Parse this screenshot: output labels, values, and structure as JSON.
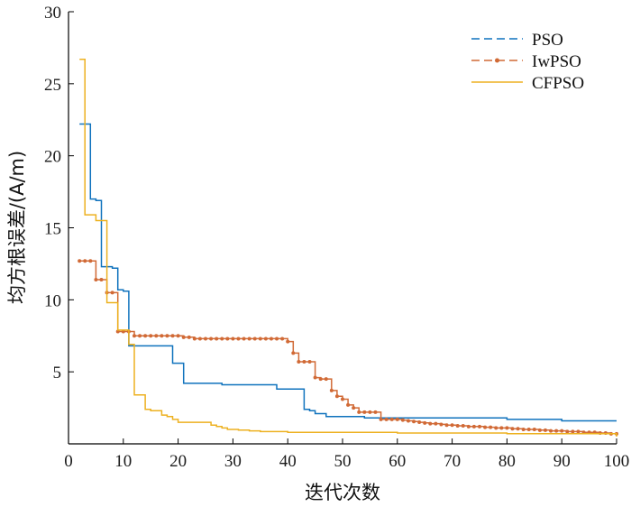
{
  "chart_data": {
    "type": "line",
    "xlabel": "迭代次数",
    "ylabel": "均方根误差/(A/m)",
    "xlim": [
      0,
      100
    ],
    "ylim": [
      0,
      30
    ],
    "xticks": [
      0,
      10,
      20,
      30,
      40,
      50,
      60,
      70,
      80,
      90,
      100
    ],
    "yticks": [
      5,
      10,
      15,
      20,
      25,
      30
    ],
    "grid": false,
    "legend": "top-right",
    "series": [
      {
        "name": "PSO",
        "color": "#0f72bd",
        "legend_style": "dashed",
        "step": true,
        "x": [
          2,
          3,
          4,
          5,
          6,
          7,
          8,
          9,
          10,
          11,
          19,
          20,
          21,
          28,
          38,
          43,
          44,
          45,
          46,
          47,
          54,
          58,
          80,
          90,
          100
        ],
        "y": [
          22.2,
          22.2,
          17.0,
          16.9,
          12.3,
          12.3,
          12.2,
          10.7,
          10.6,
          6.8,
          5.6,
          5.6,
          4.2,
          4.1,
          3.8,
          2.4,
          2.3,
          2.1,
          2.1,
          1.9,
          1.8,
          1.8,
          1.7,
          1.6,
          1.6
        ]
      },
      {
        "name": "IwPSO",
        "color": "#d16a36",
        "legend_style": "dashed-marker",
        "step": true,
        "x": [
          2,
          3,
          4,
          5,
          6,
          7,
          8,
          9,
          10,
          11,
          12,
          13,
          14,
          15,
          16,
          17,
          18,
          19,
          20,
          21,
          22,
          23,
          24,
          25,
          26,
          27,
          28,
          29,
          30,
          31,
          32,
          33,
          34,
          35,
          36,
          37,
          38,
          39,
          40,
          41,
          42,
          43,
          44,
          45,
          46,
          47,
          48,
          49,
          50,
          51,
          52,
          53,
          54,
          55,
          56,
          57,
          58,
          59,
          60,
          61,
          62,
          63,
          64,
          65,
          66,
          67,
          68,
          69,
          70,
          71,
          72,
          73,
          74,
          75,
          76,
          77,
          78,
          79,
          80,
          81,
          82,
          83,
          84,
          85,
          86,
          87,
          88,
          89,
          90,
          91,
          92,
          93,
          94,
          95,
          96,
          97,
          98,
          99,
          100
        ],
        "y": [
          12.7,
          12.7,
          12.7,
          11.4,
          11.4,
          10.5,
          10.5,
          7.8,
          7.8,
          7.8,
          7.5,
          7.5,
          7.5,
          7.5,
          7.5,
          7.5,
          7.5,
          7.5,
          7.5,
          7.4,
          7.4,
          7.3,
          7.3,
          7.3,
          7.3,
          7.3,
          7.3,
          7.3,
          7.3,
          7.3,
          7.3,
          7.3,
          7.3,
          7.3,
          7.3,
          7.3,
          7.3,
          7.3,
          7.1,
          6.3,
          5.7,
          5.7,
          5.7,
          4.6,
          4.5,
          4.5,
          3.7,
          3.3,
          3.1,
          2.7,
          2.5,
          2.2,
          2.2,
          2.2,
          2.2,
          1.7,
          1.7,
          1.7,
          1.7,
          1.65,
          1.6,
          1.55,
          1.5,
          1.45,
          1.4,
          1.4,
          1.35,
          1.3,
          1.3,
          1.25,
          1.25,
          1.2,
          1.2,
          1.2,
          1.15,
          1.15,
          1.1,
          1.1,
          1.1,
          1.05,
          1.05,
          1.0,
          1.0,
          1.0,
          0.95,
          0.95,
          0.9,
          0.9,
          0.9,
          0.85,
          0.85,
          0.85,
          0.8,
          0.8,
          0.8,
          0.75,
          0.75,
          0.7,
          0.7
        ]
      },
      {
        "name": "CFPSO",
        "color": "#edb120",
        "legend_style": "solid",
        "step": true,
        "x": [
          2,
          3,
          4,
          5,
          6,
          7,
          8,
          9,
          11,
          12,
          13,
          14,
          15,
          17,
          18,
          19,
          20,
          21,
          25,
          26,
          27,
          28,
          29,
          30,
          31,
          33,
          35,
          40,
          60,
          80,
          100
        ],
        "y": [
          26.7,
          15.9,
          15.9,
          15.5,
          15.5,
          9.8,
          9.8,
          7.9,
          6.9,
          3.4,
          3.4,
          2.4,
          2.3,
          2.0,
          1.9,
          1.7,
          1.5,
          1.5,
          1.5,
          1.3,
          1.2,
          1.1,
          1.0,
          1.0,
          0.95,
          0.9,
          0.85,
          0.8,
          0.75,
          0.7,
          0.5
        ]
      }
    ]
  }
}
